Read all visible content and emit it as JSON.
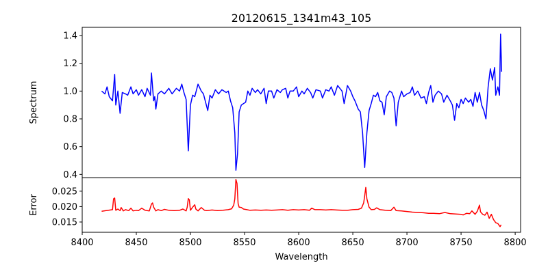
{
  "chart_data": [
    {
      "type": "line",
      "title": "20120615_1341m43_105",
      "xlabel": "",
      "ylabel": "Spectrum",
      "xlim": [
        8400,
        8805
      ],
      "ylim": [
        0.377,
        1.459
      ],
      "yticks": [
        "0.4",
        "0.6",
        "0.8",
        "1.0",
        "1.2",
        "1.4"
      ],
      "ytick_values": [
        0.4,
        0.6,
        0.8,
        1.0,
        1.2,
        1.4
      ],
      "color": "#0000ff",
      "series": [
        {
          "name": "Spectrum",
          "x": [
            8418,
            8421,
            8423,
            8425,
            8428,
            8430,
            8431,
            8433,
            8435,
            8437,
            8440,
            8442,
            8445,
            8447,
            8450,
            8452,
            8455,
            8458,
            8460,
            8463,
            8464,
            8466,
            8467,
            8468,
            8470,
            8473,
            8476,
            8480,
            8483,
            8487,
            8490,
            8492,
            8494,
            8496,
            8498,
            8500,
            8502,
            8504,
            8507,
            8510,
            8512,
            8514,
            8516,
            8518,
            8520,
            8523,
            8526,
            8529,
            8533,
            8535,
            8537,
            8539,
            8541,
            8542,
            8543.5,
            8545,
            8547,
            8549,
            8551,
            8553,
            8555,
            8557,
            8560,
            8562,
            8565,
            8568,
            8570,
            8572,
            8575,
            8577,
            8580,
            8583,
            8585,
            8588,
            8590,
            8592,
            8595,
            8598,
            8600,
            8603,
            8605,
            8608,
            8611,
            8613,
            8616,
            8620,
            8622,
            8625,
            8628,
            8630,
            8633,
            8636,
            8640,
            8642,
            8645,
            8648,
            8650,
            8652,
            8655,
            8657,
            8659,
            8661,
            8663,
            8665,
            8667,
            8669,
            8671,
            8673,
            8675,
            8677,
            8679,
            8681,
            8684,
            8686,
            8688,
            8690,
            8692,
            8695,
            8697,
            8700,
            8703,
            8705,
            8707,
            8710,
            8713,
            8716,
            8718,
            8720,
            8722,
            8724,
            8726,
            8729,
            8732,
            8734,
            8737,
            8740,
            8742,
            8744,
            8746,
            8748,
            8750,
            8752,
            8754,
            8757,
            8759,
            8761,
            8763,
            8765,
            8767,
            8769,
            8771,
            8773,
            8775,
            8777,
            8779,
            8781,
            8782,
            8784,
            8785.5,
            8786.5,
            8787.5
          ],
          "y": [
            1.0,
            0.98,
            1.03,
            0.96,
            0.93,
            1.12,
            0.9,
            1.0,
            0.84,
            0.99,
            0.98,
            0.97,
            1.03,
            0.98,
            1.01,
            0.97,
            1.01,
            0.96,
            1.02,
            0.97,
            1.13,
            0.93,
            0.96,
            0.87,
            0.98,
            1.0,
            0.98,
            1.02,
            0.98,
            1.02,
            1.0,
            1.05,
            0.99,
            0.94,
            0.57,
            0.9,
            0.97,
            0.96,
            1.05,
            1.0,
            0.98,
            0.92,
            0.86,
            0.97,
            0.95,
            1.01,
            0.98,
            1.01,
            0.99,
            1.0,
            0.93,
            0.88,
            0.7,
            0.43,
            0.55,
            0.85,
            0.9,
            0.91,
            0.92,
            1.0,
            0.97,
            1.02,
            0.99,
            1.01,
            0.98,
            1.02,
            0.91,
            1.0,
            1.0,
            0.95,
            1.01,
            0.99,
            1.01,
            1.02,
            0.95,
            1.0,
            1.0,
            1.03,
            0.96,
            1.0,
            0.98,
            1.02,
            0.99,
            0.95,
            1.01,
            1.0,
            0.95,
            1.01,
            1.0,
            1.03,
            0.97,
            1.04,
            1.0,
            0.91,
            1.04,
            1.0,
            0.96,
            0.93,
            0.87,
            0.85,
            0.7,
            0.45,
            0.7,
            0.86,
            0.91,
            0.97,
            0.96,
            0.99,
            0.93,
            0.92,
            0.83,
            0.96,
            1.0,
            0.99,
            0.95,
            0.75,
            0.92,
            1.0,
            0.96,
            0.98,
            0.99,
            1.03,
            0.97,
            1.0,
            0.95,
            0.96,
            0.91,
            0.99,
            1.04,
            0.92,
            0.97,
            1.0,
            0.98,
            0.92,
            0.97,
            0.93,
            0.9,
            0.79,
            0.91,
            0.88,
            0.94,
            0.91,
            0.95,
            0.92,
            0.94,
            0.89,
            0.99,
            0.92,
            0.99,
            0.9,
            0.86,
            0.8,
            1.03,
            1.16,
            1.08,
            1.17,
            0.97,
            1.03,
            0.97,
            1.41,
            1.14
          ]
        }
      ]
    },
    {
      "type": "line",
      "title": "",
      "xlabel": "Wavelength",
      "ylabel": "Error",
      "xlim": [
        8400,
        8805
      ],
      "ylim": [
        0.01167,
        0.0294
      ],
      "yticks": [
        "0.015",
        "0.020",
        "0.025"
      ],
      "ytick_values": [
        0.015,
        0.02,
        0.025
      ],
      "xticks": [
        "8400",
        "8450",
        "8500",
        "8550",
        "8600",
        "8650",
        "8700",
        "8750",
        "8800"
      ],
      "xtick_values": [
        8400,
        8450,
        8500,
        8550,
        8600,
        8650,
        8700,
        8750,
        8800
      ],
      "color": "#ff0000",
      "series": [
        {
          "name": "Error",
          "x": [
            8418,
            8422,
            8426,
            8428,
            8429,
            8430,
            8431,
            8433,
            8435,
            8436,
            8438,
            8440,
            8443,
            8445,
            8447,
            8450,
            8452,
            8455,
            8458,
            8462,
            8464,
            8465,
            8466,
            8468,
            8470,
            8473,
            8476,
            8480,
            8485,
            8490,
            8493,
            8496,
            8497,
            8498,
            8499,
            8500,
            8502,
            8504,
            8505,
            8507,
            8510,
            8513,
            8515,
            8520,
            8525,
            8530,
            8535,
            8538,
            8540,
            8541,
            8542,
            8543,
            8544,
            8545,
            8547,
            8549,
            8552,
            8555,
            8560,
            8565,
            8570,
            8575,
            8580,
            8585,
            8590,
            8595,
            8600,
            8605,
            8610,
            8612,
            8615,
            8620,
            8625,
            8630,
            8635,
            8640,
            8645,
            8650,
            8655,
            8658,
            8660,
            8661,
            8662,
            8663,
            8665,
            8667,
            8670,
            8672,
            8675,
            8680,
            8685,
            8688,
            8690,
            8695,
            8700,
            8705,
            8710,
            8715,
            8720,
            8725,
            8730,
            8735,
            8740,
            8745,
            8750,
            8752,
            8755,
            8758,
            8760,
            8763,
            8765,
            8767,
            8768,
            8770,
            8772,
            8774,
            8776,
            8778,
            8780,
            8782,
            8784,
            8786,
            8787
          ],
          "y": [
            0.0185,
            0.0187,
            0.0189,
            0.019,
            0.0225,
            0.0228,
            0.0188,
            0.0192,
            0.0187,
            0.0197,
            0.0186,
            0.019,
            0.0187,
            0.0195,
            0.0186,
            0.0188,
            0.0187,
            0.0195,
            0.0188,
            0.0186,
            0.0208,
            0.0212,
            0.0198,
            0.0186,
            0.019,
            0.0187,
            0.0191,
            0.0188,
            0.0187,
            0.0188,
            0.0192,
            0.0186,
            0.0198,
            0.0226,
            0.0222,
            0.0188,
            0.0198,
            0.0206,
            0.0192,
            0.0186,
            0.0197,
            0.0188,
            0.0187,
            0.0189,
            0.0187,
            0.0188,
            0.019,
            0.0193,
            0.0205,
            0.0225,
            0.0288,
            0.0275,
            0.021,
            0.0198,
            0.0197,
            0.0192,
            0.019,
            0.0188,
            0.0189,
            0.0188,
            0.0189,
            0.0188,
            0.0189,
            0.019,
            0.0188,
            0.019,
            0.0189,
            0.019,
            0.0188,
            0.0195,
            0.019,
            0.019,
            0.0189,
            0.019,
            0.0189,
            0.0188,
            0.0188,
            0.019,
            0.0191,
            0.0195,
            0.0212,
            0.0235,
            0.0262,
            0.0225,
            0.0198,
            0.019,
            0.0191,
            0.0196,
            0.019,
            0.0188,
            0.0187,
            0.0198,
            0.0187,
            0.0186,
            0.0184,
            0.0182,
            0.0181,
            0.018,
            0.0178,
            0.0178,
            0.0177,
            0.0181,
            0.0177,
            0.0176,
            0.0175,
            0.0173,
            0.0178,
            0.0177,
            0.0186,
            0.0175,
            0.0185,
            0.0205,
            0.0183,
            0.0175,
            0.0172,
            0.0182,
            0.0162,
            0.0175,
            0.0158,
            0.0148,
            0.0145,
            0.0135,
            0.0141
          ]
        }
      ]
    }
  ]
}
